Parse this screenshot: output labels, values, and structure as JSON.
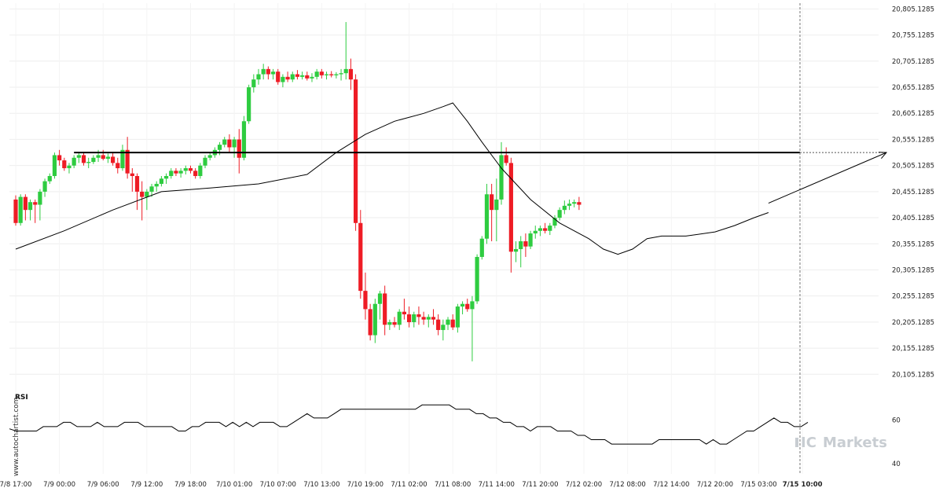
{
  "chart_data": {
    "type": "candlestick",
    "ylim": [
      20080,
      20820
    ],
    "y_ticks": [
      20805.1285,
      20755.1285,
      20705.1285,
      20655.1285,
      20605.1285,
      20555.1285,
      20505.1285,
      20455.1285,
      20405.1285,
      20355.1285,
      20305.1285,
      20255.1285,
      20205.1285,
      20155.1285,
      20105.1285
    ],
    "y_tick_labels": [
      "20,805.1285",
      "20,755.1285",
      "20,705.1285",
      "20,655.1285",
      "20,605.1285",
      "20,555.1285",
      "20,505.1285",
      "20,455.1285",
      "20,405.1285",
      "20,355.1285",
      "20,305.1285",
      "20,255.1285",
      "20,205.1285",
      "20,155.1285",
      "20,105.1285"
    ],
    "x_tick_labels": [
      "7/8 17:00",
      "7/9 00:00",
      "7/9 06:00",
      "7/9 12:00",
      "7/9 18:00",
      "7/10 01:00",
      "7/10 07:00",
      "7/10 13:00",
      "7/10 19:00",
      "7/11 02:00",
      "7/11 08:00",
      "7/11 14:00",
      "7/11 20:00",
      "7/12 02:00",
      "7/12 08:00",
      "7/12 14:00",
      "7/12 20:00",
      "7/15 03:00",
      "7/15 10:00"
    ],
    "x_tick_candle_index": [
      0,
      9,
      18,
      27,
      36,
      45,
      54,
      63,
      72,
      81,
      90,
      99,
      108,
      117,
      126,
      135,
      144,
      153,
      162
    ],
    "candles": [
      [
        20440,
        20448,
        20390,
        20395
      ],
      [
        20395,
        20450,
        20390,
        20445
      ],
      [
        20445,
        20450,
        20400,
        20420
      ],
      [
        20420,
        20440,
        20400,
        20435
      ],
      [
        20435,
        20440,
        20395,
        20430
      ],
      [
        20430,
        20460,
        20400,
        20455
      ],
      [
        20455,
        20480,
        20445,
        20475
      ],
      [
        20475,
        20490,
        20470,
        20485
      ],
      [
        20485,
        20530,
        20480,
        20525
      ],
      [
        20525,
        20535,
        20505,
        20515
      ],
      [
        20515,
        20520,
        20495,
        20500
      ],
      [
        20500,
        20510,
        20490,
        20505
      ],
      [
        20505,
        20525,
        20500,
        20520
      ],
      [
        20520,
        20530,
        20510,
        20525
      ],
      [
        20525,
        20530,
        20505,
        20510
      ],
      [
        20510,
        20520,
        20500,
        20512
      ],
      [
        20512,
        20525,
        20508,
        20520
      ],
      [
        20520,
        20535,
        20512,
        20525
      ],
      [
        20525,
        20535,
        20515,
        20518
      ],
      [
        20518,
        20528,
        20510,
        20522
      ],
      [
        20522,
        20530,
        20505,
        20510
      ],
      [
        20510,
        20520,
        20490,
        20500
      ],
      [
        20500,
        20545,
        20495,
        20535
      ],
      [
        20535,
        20560,
        20480,
        20490
      ],
      [
        20490,
        20500,
        20455,
        20485
      ],
      [
        20485,
        20490,
        20420,
        20455
      ],
      [
        20455,
        20475,
        20400,
        20445
      ],
      [
        20445,
        20460,
        20420,
        20455
      ],
      [
        20455,
        20470,
        20445,
        20465
      ],
      [
        20465,
        20475,
        20455,
        20470
      ],
      [
        20470,
        20485,
        20465,
        20480
      ],
      [
        20480,
        20490,
        20470,
        20485
      ],
      [
        20485,
        20500,
        20480,
        20495
      ],
      [
        20495,
        20500,
        20485,
        20490
      ],
      [
        20490,
        20500,
        20482,
        20495
      ],
      [
        20495,
        20505,
        20488,
        20500
      ],
      [
        20500,
        20505,
        20490,
        20495
      ],
      [
        20495,
        20500,
        20480,
        20485
      ],
      [
        20485,
        20510,
        20480,
        20505
      ],
      [
        20505,
        20525,
        20500,
        20520
      ],
      [
        20520,
        20530,
        20515,
        20525
      ],
      [
        20525,
        20540,
        20520,
        20535
      ],
      [
        20535,
        20550,
        20525,
        20545
      ],
      [
        20545,
        20560,
        20540,
        20555
      ],
      [
        20555,
        20565,
        20530,
        20540
      ],
      [
        20540,
        20560,
        20520,
        20555
      ],
      [
        20555,
        20575,
        20490,
        20520
      ],
      [
        20520,
        20600,
        20515,
        20590
      ],
      [
        20590,
        20660,
        20585,
        20655
      ],
      [
        20655,
        20680,
        20645,
        20670
      ],
      [
        20670,
        20690,
        20660,
        20680
      ],
      [
        20680,
        20700,
        20670,
        20690
      ],
      [
        20690,
        20695,
        20670,
        20680
      ],
      [
        20680,
        20690,
        20670,
        20685
      ],
      [
        20685,
        20690,
        20660,
        20665
      ],
      [
        20665,
        20680,
        20655,
        20675
      ],
      [
        20675,
        20685,
        20665,
        20670
      ],
      [
        20670,
        20685,
        20665,
        20680
      ],
      [
        20680,
        20688,
        20670,
        20675
      ],
      [
        20675,
        20685,
        20670,
        20678
      ],
      [
        20678,
        20685,
        20668,
        20672
      ],
      [
        20672,
        20682,
        20665,
        20675
      ],
      [
        20675,
        20690,
        20670,
        20685
      ],
      [
        20685,
        20690,
        20672,
        20678
      ],
      [
        20678,
        20685,
        20670,
        20680
      ],
      [
        20680,
        20686,
        20674,
        20678
      ],
      [
        20678,
        20684,
        20672,
        20680
      ],
      [
        20680,
        20690,
        20668,
        20682
      ],
      [
        20682,
        20780,
        20670,
        20690
      ],
      [
        20690,
        20710,
        20650,
        20670
      ],
      [
        20670,
        20680,
        20380,
        20395
      ],
      [
        20395,
        20420,
        20250,
        20265
      ],
      [
        20265,
        20300,
        20210,
        20230
      ],
      [
        20230,
        20240,
        20170,
        20180
      ],
      [
        20180,
        20250,
        20165,
        20240
      ],
      [
        20240,
        20265,
        20210,
        20260
      ],
      [
        20260,
        20275,
        20180,
        20200
      ],
      [
        20200,
        20210,
        20190,
        20205
      ],
      [
        20205,
        20215,
        20195,
        20200
      ],
      [
        20200,
        20230,
        20190,
        20225
      ],
      [
        20225,
        20250,
        20210,
        20220
      ],
      [
        20220,
        20235,
        20195,
        20205
      ],
      [
        20205,
        20225,
        20195,
        20220
      ],
      [
        20220,
        20235,
        20200,
        20215
      ],
      [
        20215,
        20225,
        20200,
        20210
      ],
      [
        20210,
        20220,
        20195,
        20215
      ],
      [
        20215,
        20230,
        20200,
        20210
      ],
      [
        20210,
        20220,
        20180,
        20190
      ],
      [
        20190,
        20210,
        20170,
        20200
      ],
      [
        20200,
        20215,
        20190,
        20210
      ],
      [
        20210,
        20220,
        20190,
        20195
      ],
      [
        20195,
        20240,
        20185,
        20235
      ],
      [
        20235,
        20245,
        20220,
        20240
      ],
      [
        20240,
        20250,
        20225,
        20230
      ],
      [
        20230,
        20255,
        20130,
        20245
      ],
      [
        20245,
        20335,
        20240,
        20330
      ],
      [
        20330,
        20370,
        20325,
        20365
      ],
      [
        20365,
        20470,
        20355,
        20450
      ],
      [
        20450,
        20470,
        20360,
        20420
      ],
      [
        20420,
        20480,
        20360,
        20440
      ],
      [
        20440,
        20550,
        20430,
        20525
      ],
      [
        20525,
        20540,
        20505,
        20510
      ],
      [
        20510,
        20520,
        20300,
        20340
      ],
      [
        20340,
        20360,
        20320,
        20345
      ],
      [
        20345,
        20370,
        20310,
        20360
      ],
      [
        20360,
        20375,
        20330,
        20350
      ],
      [
        20350,
        20380,
        20345,
        20375
      ],
      [
        20375,
        20390,
        20365,
        20380
      ],
      [
        20380,
        20390,
        20370,
        20385
      ],
      [
        20385,
        20395,
        20375,
        20380
      ],
      [
        20380,
        20395,
        20372,
        20390
      ],
      [
        20390,
        20410,
        20385,
        20405
      ],
      [
        20405,
        20425,
        20400,
        20420
      ],
      [
        20420,
        20438,
        20412,
        20428
      ],
      [
        20428,
        20440,
        20420,
        20432
      ],
      [
        20432,
        20440,
        20425,
        20435
      ],
      [
        20435,
        20445,
        20420,
        20430
      ]
    ],
    "moving_average": [
      [
        0,
        20345
      ],
      [
        10,
        20380
      ],
      [
        20,
        20420
      ],
      [
        30,
        20455
      ],
      [
        40,
        20462
      ],
      [
        50,
        20470
      ],
      [
        60,
        20488
      ],
      [
        66,
        20530
      ],
      [
        72,
        20565
      ],
      [
        78,
        20590
      ],
      [
        84,
        20605
      ],
      [
        88,
        20618
      ],
      [
        90,
        20625
      ],
      [
        93,
        20590
      ],
      [
        96,
        20550
      ],
      [
        100,
        20500
      ],
      [
        106,
        20440
      ],
      [
        112,
        20395
      ],
      [
        118,
        20365
      ],
      [
        121,
        20345
      ],
      [
        124,
        20335
      ],
      [
        127,
        20345
      ],
      [
        130,
        20365
      ],
      [
        133,
        20370
      ],
      [
        138,
        20370
      ],
      [
        144,
        20378
      ],
      [
        148,
        20390
      ],
      [
        152,
        20405
      ],
      [
        155,
        20415
      ]
    ],
    "horizontal_level": 20530,
    "forecast_arrow": {
      "from": [
        155,
        20433
      ],
      "to": [
        172,
        20530
      ]
    },
    "rsi": {
      "label": "RSI",
      "ylim": [
        36,
        70
      ],
      "ticks": [
        60,
        40
      ],
      "tick_labels": [
        "60",
        "40"
      ],
      "values": [
        56,
        55,
        55,
        55,
        55,
        57,
        57,
        57,
        59,
        59,
        57,
        57,
        57,
        59,
        57,
        57,
        57,
        59,
        59,
        59,
        57,
        57,
        57,
        57,
        57,
        55,
        55,
        57,
        57,
        59,
        59,
        59,
        57,
        59,
        57,
        59,
        57,
        59,
        59,
        59,
        57,
        57,
        59,
        61,
        63,
        61,
        61,
        61,
        63,
        65,
        65,
        65,
        65,
        65,
        65,
        65,
        65,
        65,
        65,
        65,
        65,
        67,
        67,
        67,
        67,
        67,
        65,
        65,
        65,
        63,
        63,
        61,
        61,
        59,
        59,
        57,
        57,
        55,
        57,
        57,
        57,
        55,
        55,
        55,
        53,
        53,
        51,
        51,
        51,
        49,
        49,
        49,
        49,
        49,
        49,
        49,
        51,
        51,
        51,
        51,
        51,
        51,
        51,
        49,
        51,
        49,
        49,
        51,
        53,
        55,
        55,
        57,
        59,
        61,
        59,
        59,
        57,
        57,
        59
      ]
    }
  },
  "watermark": "www.autochartist.com",
  "brand": {
    "prefix": "IC",
    "name": "Markets"
  },
  "colors": {
    "up": "#2ecc40",
    "down": "#ee1c25",
    "line": "#000000",
    "grid": "#eeeeee"
  }
}
